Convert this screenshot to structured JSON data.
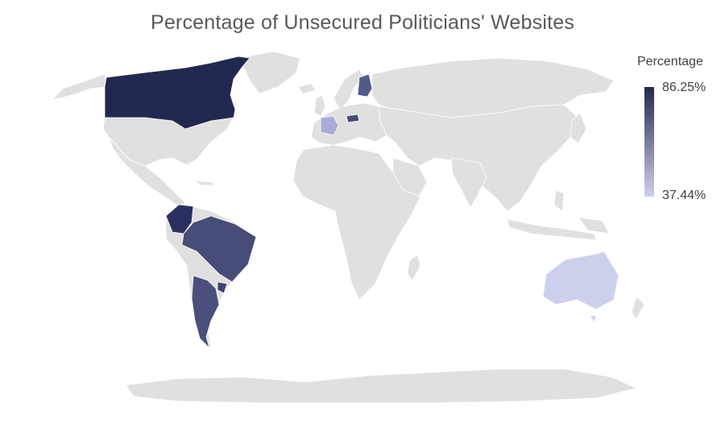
{
  "title": "Percentage of Unsecured Politicians' Websites",
  "legend": {
    "title": "Percentage",
    "max_label": "86.25%",
    "min_label": "37.44%",
    "max_color": "#232850",
    "min_color": "#cdd0ec"
  },
  "colors": {
    "land": "#e0e0e0",
    "border": "#ffffff"
  },
  "regions": [
    {
      "name": "Canada",
      "value": 86.25,
      "color": "#232850"
    },
    {
      "name": "Colombia",
      "value": 80.0,
      "color": "#2c3060"
    },
    {
      "name": "Brazil",
      "value": 70.0,
      "color": "#474c78"
    },
    {
      "name": "Argentina",
      "value": 68.0,
      "color": "#4a4f7c"
    },
    {
      "name": "Uruguay",
      "value": 72.0,
      "color": "#3f4472"
    },
    {
      "name": "Finland",
      "value": 66.0,
      "color": "#545a88"
    },
    {
      "name": "Czech Republic",
      "value": 70.0,
      "color": "#474c78"
    },
    {
      "name": "France",
      "value": 48.0,
      "color": "#a9acd4"
    },
    {
      "name": "Australia",
      "value": 37.44,
      "color": "#cdd0ec"
    }
  ]
}
